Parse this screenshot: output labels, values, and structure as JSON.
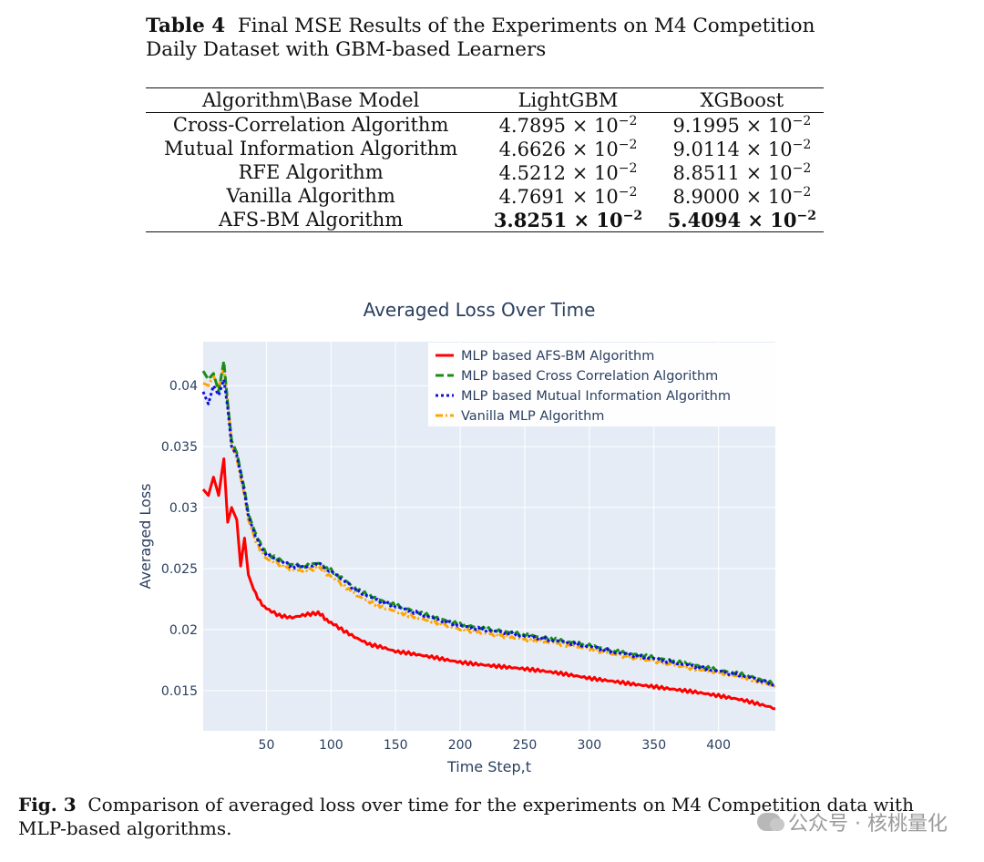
{
  "table": {
    "label": "Table 4",
    "title": "Final MSE Results of the Experiments on M4 Competition Daily Dataset with GBM-based Learners",
    "headers": [
      "Algorithm\\Base Model",
      "LightGBM",
      "XGBoost"
    ],
    "rows": [
      {
        "algorithm": "Cross-Correlation Algorithm",
        "lgbm": "4.7895",
        "xgb": "9.1995",
        "bold": false
      },
      {
        "algorithm": "Mutual Information Algorithm",
        "lgbm": "4.6626",
        "xgb": "9.0114",
        "bold": false
      },
      {
        "algorithm": "RFE Algorithm",
        "lgbm": "4.5212",
        "xgb": "8.8511",
        "bold": false
      },
      {
        "algorithm": "Vanilla Algorithm",
        "lgbm": "4.7691",
        "xgb": "8.9000",
        "bold": false
      },
      {
        "algorithm": "AFS-BM Algorithm",
        "lgbm": "3.8251",
        "xgb": "5.4094",
        "bold": true
      }
    ],
    "multiplier": "× 10",
    "exponent": "−2"
  },
  "chart_data": {
    "type": "line",
    "title": "Averaged Loss Over Time",
    "xlabel": "Time Step,t",
    "ylabel": "Averaged Loss",
    "xlim": [
      1,
      444
    ],
    "ylim": [
      0.0117,
      0.0436
    ],
    "xticks": [
      50,
      100,
      150,
      200,
      250,
      300,
      350,
      400
    ],
    "yticks": [
      0.015,
      0.02,
      0.025,
      0.03,
      0.035,
      0.04
    ],
    "ytick_labels": [
      "0.015",
      "0.02",
      "0.025",
      "0.03",
      "0.035",
      "0.04"
    ],
    "legend_position": "top-right",
    "series": [
      {
        "name": "MLP based AFS-BM Algorithm",
        "color": "#ff0000",
        "dash": "solid",
        "x": [
          1,
          5,
          9,
          13,
          17,
          20,
          23,
          27,
          30,
          33,
          36,
          40,
          45,
          50,
          60,
          70,
          80,
          90,
          95,
          100,
          110,
          120,
          130,
          140,
          150,
          160,
          180,
          200,
          220,
          250,
          280,
          300,
          320,
          350,
          380,
          400,
          420,
          444
        ],
        "y": [
          0.0315,
          0.031,
          0.0325,
          0.031,
          0.034,
          0.0288,
          0.03,
          0.029,
          0.0252,
          0.0275,
          0.0245,
          0.0233,
          0.0222,
          0.0218,
          0.0212,
          0.021,
          0.0212,
          0.0213,
          0.021,
          0.0205,
          0.0198,
          0.0192,
          0.0187,
          0.0185,
          0.0182,
          0.0181,
          0.0178,
          0.0174,
          0.0171,
          0.0167,
          0.0163,
          0.016,
          0.0158,
          0.0154,
          0.0149,
          0.0145,
          0.0141,
          0.0135
        ]
      },
      {
        "name": "MLP based Cross Correlation Algorithm",
        "color": "#1a8c1a",
        "dash": "dashed",
        "x": [
          1,
          5,
          9,
          13,
          17,
          20,
          23,
          27,
          30,
          33,
          36,
          40,
          45,
          50,
          60,
          70,
          80,
          90,
          95,
          100,
          110,
          120,
          130,
          140,
          150,
          160,
          180,
          200,
          220,
          250,
          280,
          300,
          320,
          350,
          380,
          400,
          420,
          444
        ],
        "y": [
          0.0412,
          0.0405,
          0.041,
          0.0395,
          0.042,
          0.0385,
          0.0355,
          0.0345,
          0.033,
          0.0315,
          0.0295,
          0.0283,
          0.027,
          0.0263,
          0.0258,
          0.0253,
          0.0252,
          0.0254,
          0.0252,
          0.0248,
          0.024,
          0.0232,
          0.0227,
          0.0223,
          0.022,
          0.0217,
          0.0211,
          0.0205,
          0.0201,
          0.0195,
          0.019,
          0.0187,
          0.0183,
          0.0178,
          0.0171,
          0.0166,
          0.0162,
          0.0155
        ]
      },
      {
        "name": "MLP based Mutual Information Algorithm",
        "color": "#1010e0",
        "dash": "dotted",
        "x": [
          1,
          5,
          9,
          13,
          17,
          20,
          23,
          27,
          30,
          33,
          36,
          40,
          45,
          50,
          60,
          70,
          80,
          90,
          95,
          100,
          110,
          120,
          130,
          140,
          150,
          160,
          180,
          200,
          220,
          250,
          280,
          300,
          320,
          350,
          380,
          400,
          420,
          444
        ],
        "y": [
          0.0395,
          0.0385,
          0.04,
          0.0392,
          0.0405,
          0.0382,
          0.035,
          0.0343,
          0.0328,
          0.0312,
          0.0293,
          0.0281,
          0.0268,
          0.0262,
          0.0257,
          0.0252,
          0.0251,
          0.0253,
          0.0251,
          0.0247,
          0.0239,
          0.0231,
          0.0226,
          0.0222,
          0.0219,
          0.0216,
          0.021,
          0.0204,
          0.02,
          0.0194,
          0.0189,
          0.0186,
          0.0182,
          0.0177,
          0.017,
          0.0165,
          0.0161,
          0.0154
        ]
      },
      {
        "name": "Vanilla MLP Algorithm",
        "color": "#ffa500",
        "dash": "dashdot",
        "x": [
          1,
          5,
          9,
          13,
          17,
          20,
          23,
          27,
          30,
          33,
          36,
          40,
          45,
          50,
          60,
          70,
          80,
          90,
          95,
          100,
          110,
          120,
          130,
          140,
          150,
          160,
          180,
          200,
          220,
          250,
          280,
          300,
          320,
          350,
          380,
          400,
          420,
          444
        ],
        "y": [
          0.0402,
          0.04,
          0.0408,
          0.0398,
          0.0415,
          0.0388,
          0.0352,
          0.034,
          0.0325,
          0.031,
          0.029,
          0.0278,
          0.0265,
          0.0259,
          0.0254,
          0.0249,
          0.0248,
          0.025,
          0.0248,
          0.0243,
          0.0235,
          0.0227,
          0.0222,
          0.0218,
          0.0215,
          0.0212,
          0.0207,
          0.0201,
          0.0197,
          0.0191,
          0.0187,
          0.0184,
          0.018,
          0.0175,
          0.0168,
          0.0164,
          0.016,
          0.0153
        ]
      }
    ]
  },
  "figure": {
    "label": "Fig. 3",
    "caption": "Comparison of averaged loss over time for the experiments on M4 Competition data with MLP-based algorithms."
  },
  "watermark": {
    "text": "公众号 · 核桃量化"
  }
}
